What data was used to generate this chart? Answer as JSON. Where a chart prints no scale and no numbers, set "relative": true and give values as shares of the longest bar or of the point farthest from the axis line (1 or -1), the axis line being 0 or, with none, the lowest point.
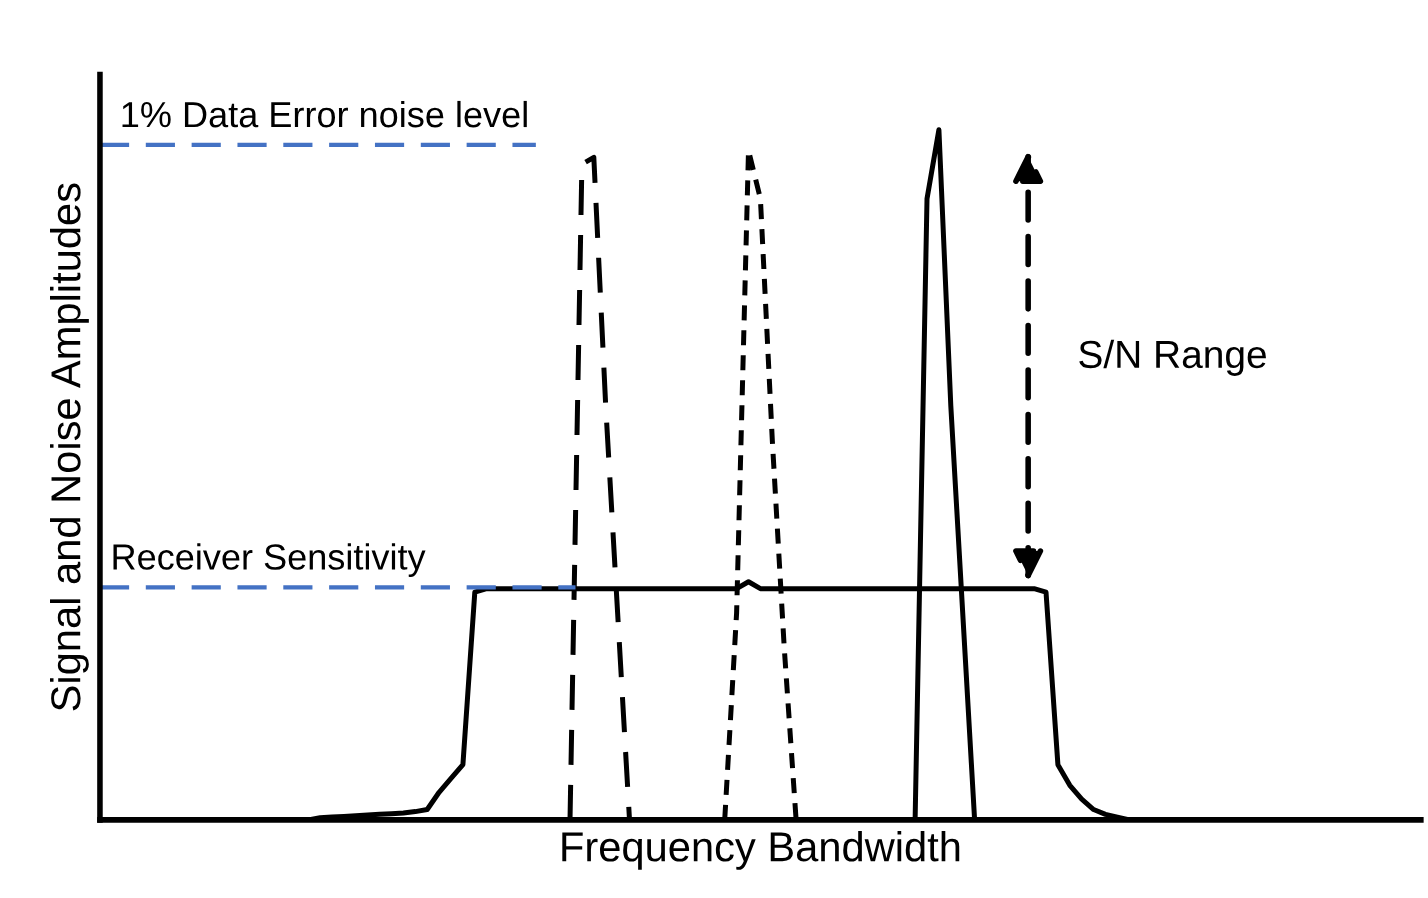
{
  "chart_data": {
    "type": "line",
    "relative": true,
    "xlabel": "Frequency Bandwidth",
    "ylabel": "Signal and Noise Amplitudes",
    "legend": false,
    "categories": [
      null,
      null,
      null,
      null,
      null,
      null,
      null,
      null,
      null,
      null,
      null,
      null,
      null,
      null,
      null,
      null,
      null,
      null,
      null,
      null,
      null,
      null,
      null,
      null,
      null,
      null,
      null,
      null,
      null,
      null,
      null,
      null,
      null,
      null,
      null,
      null,
      null,
      null,
      null,
      null,
      null,
      null,
      null,
      null,
      null,
      null,
      null,
      null,
      null,
      null,
      null,
      null,
      null,
      null,
      null,
      null,
      null,
      null,
      null,
      null,
      null,
      null,
      null,
      null,
      null,
      null,
      null,
      null,
      null,
      null,
      null,
      null,
      null,
      null,
      null,
      null,
      null,
      null,
      null,
      null,
      null,
      null,
      null,
      null,
      null,
      null,
      null,
      null,
      null,
      null,
      null,
      null,
      null,
      null,
      null,
      null,
      null,
      null,
      null,
      null,
      null,
      null,
      null,
      null,
      null,
      null,
      null,
      null,
      null,
      null,
      null
    ],
    "series": [
      {
        "color": "#000000",
        "line_style": "solid",
        "values": [
          null,
          null,
          null,
          null,
          null,
          null,
          null,
          null,
          null,
          null,
          null,
          null,
          null,
          null,
          null,
          null,
          null,
          0,
          0.003,
          0.004,
          0.005,
          0.006,
          0.007,
          0.008,
          0.009,
          0.01,
          0.012,
          0.015,
          0.04,
          0.06,
          0.08,
          0.33,
          0.335,
          0.335,
          0.335,
          0.335,
          0.335,
          0.335,
          0.335,
          0.335,
          0.335,
          0.335,
          0.335,
          0.335,
          0.335,
          0.335,
          0.335,
          0.335,
          0.335,
          0.335,
          0.335,
          0.335,
          0.335,
          0.335,
          0.345,
          0.335,
          0.335,
          0.335,
          0.335,
          0.335,
          0.335,
          0.335,
          0.335,
          0.335,
          0.335,
          0.335,
          0.335,
          0.335,
          0.335,
          0.335,
          0.335,
          0.335,
          0.335,
          0.335,
          0.335,
          0.335,
          0.335,
          0.335,
          0.335,
          0.33,
          0.08,
          0.05,
          0.03,
          0.015,
          0.008,
          0.004,
          0,
          null,
          null,
          null,
          null,
          null,
          null,
          null,
          null,
          null,
          null,
          null,
          null,
          null,
          null,
          null,
          null,
          null,
          null,
          null,
          null,
          null,
          null,
          null,
          null
        ]
      },
      {
        "color": "#000000",
        "line_style": "dashed",
        "values": [
          null,
          null,
          null,
          null,
          null,
          null,
          null,
          null,
          null,
          null,
          null,
          null,
          null,
          null,
          null,
          null,
          null,
          null,
          null,
          null,
          null,
          null,
          null,
          null,
          null,
          null,
          null,
          null,
          null,
          null,
          null,
          null,
          null,
          null,
          null,
          null,
          null,
          null,
          null,
          0,
          0.95,
          0.96,
          0.6,
          0.3,
          0,
          null,
          null,
          null,
          null,
          null,
          null,
          null,
          null,
          null,
          null,
          null,
          null,
          null,
          null,
          null,
          null,
          null,
          null,
          null,
          null,
          null,
          null,
          null,
          null,
          null,
          null,
          null,
          null,
          null,
          null,
          null,
          null,
          null,
          null,
          null,
          null,
          null,
          null,
          null,
          null,
          null,
          null,
          null,
          null,
          null,
          null,
          null,
          null,
          null,
          null,
          null,
          null,
          null,
          null,
          null,
          null,
          null,
          null,
          null,
          null,
          null,
          null,
          null,
          null,
          null,
          null
        ]
      },
      {
        "color": "#000000",
        "line_style": "dotted",
        "values": [
          null,
          null,
          null,
          null,
          null,
          null,
          null,
          null,
          null,
          null,
          null,
          null,
          null,
          null,
          null,
          null,
          null,
          null,
          null,
          null,
          null,
          null,
          null,
          null,
          null,
          null,
          null,
          null,
          null,
          null,
          null,
          null,
          null,
          null,
          null,
          null,
          null,
          null,
          null,
          null,
          null,
          null,
          null,
          null,
          null,
          null,
          null,
          null,
          null,
          null,
          null,
          null,
          0,
          0.3,
          0.97,
          0.9,
          0.55,
          0.25,
          0,
          null,
          null,
          null,
          null,
          null,
          null,
          null,
          null,
          null,
          null,
          null,
          null,
          null,
          null,
          null,
          null,
          null,
          null,
          null,
          null,
          null,
          null,
          null,
          null,
          null,
          null,
          null,
          null,
          null,
          null,
          null,
          null,
          null,
          null,
          null,
          null,
          null,
          null,
          null,
          null,
          null,
          null,
          null,
          null,
          null,
          null,
          null,
          null,
          null,
          null,
          null,
          null
        ]
      },
      {
        "color": "#000000",
        "line_style": "solid",
        "values": [
          null,
          null,
          null,
          null,
          null,
          null,
          null,
          null,
          null,
          null,
          null,
          null,
          null,
          null,
          null,
          null,
          null,
          null,
          null,
          null,
          null,
          null,
          null,
          null,
          null,
          null,
          null,
          null,
          null,
          null,
          null,
          null,
          null,
          null,
          null,
          null,
          null,
          null,
          null,
          null,
          null,
          null,
          null,
          null,
          null,
          null,
          null,
          null,
          null,
          null,
          null,
          null,
          null,
          null,
          null,
          null,
          null,
          null,
          null,
          null,
          null,
          null,
          null,
          null,
          null,
          null,
          null,
          null,
          0,
          0.9,
          1,
          0.6,
          0.3,
          0,
          null,
          null,
          null,
          null,
          null,
          null,
          null,
          null,
          null,
          null,
          null,
          null,
          null,
          null,
          null,
          null,
          null,
          null,
          null,
          null,
          null,
          null,
          null,
          null,
          null,
          null,
          null,
          null,
          null,
          null,
          null,
          null,
          null,
          null,
          null,
          null,
          null
        ]
      }
    ],
    "ref_lines": [
      {
        "axis": "y",
        "value": 0.978,
        "label": "1% Data Error noise level",
        "color": "#4472c4",
        "line_style": "dashed"
      },
      {
        "axis": "y",
        "value": 0.337,
        "label": "Receiver Sensitivity",
        "color": "#4472c4",
        "line_style": "dashed"
      }
    ],
    "annotations": [
      "S/N Range"
    ]
  }
}
